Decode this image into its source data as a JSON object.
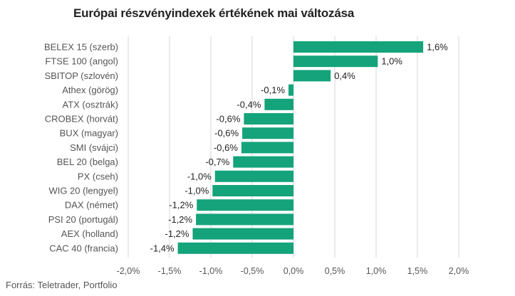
{
  "chart_data": {
    "type": "bar",
    "orientation": "horizontal",
    "title": "Európai részvényindexek értékének mai változása",
    "source": "Forrás: Teletrader, Portfolio",
    "categories": [
      "BELEX 15 (szerb)",
      "FTSE 100 (angol)",
      "SBITOP (szlovén)",
      "Athex (görög)",
      "ATX (osztrák)",
      "CROBEX (horvát)",
      "BUX (magyar)",
      "SMI (svájci)",
      "BEL 20 (belga)",
      "PX (cseh)",
      "WIG 20 (lengyel)",
      "DAX (német)",
      "PSI 20 (portugál)",
      "AEX (holland)",
      "CAC 40 (francia)"
    ],
    "values": [
      1.57,
      1.02,
      0.45,
      -0.06,
      -0.35,
      -0.6,
      -0.62,
      -0.63,
      -0.73,
      -0.95,
      -0.98,
      -1.17,
      -1.18,
      -1.22,
      -1.4
    ],
    "data_labels": [
      "1,6%",
      "1,0%",
      "0,4%",
      "-0,1%",
      "-0,4%",
      "-0,6%",
      "-0,6%",
      "-0,6%",
      "-0,7%",
      "-1,0%",
      "-1,0%",
      "-1,2%",
      "-1,2%",
      "-1,2%",
      "-1,4%"
    ],
    "xlim": [
      -2.0,
      2.0
    ],
    "ticks": [
      -2.0,
      -1.5,
      -1.0,
      -0.5,
      0.0,
      0.5,
      1.0,
      1.5,
      2.0
    ],
    "tick_labels": [
      "-2,0%",
      "-1,5%",
      "-1,0%",
      "-0,5%",
      "0,0%",
      "0,5%",
      "1,0%",
      "1,5%",
      "2,0%"
    ],
    "grid": true,
    "bar_color": "#14a37a",
    "grid_color": "#d6d6d6"
  }
}
